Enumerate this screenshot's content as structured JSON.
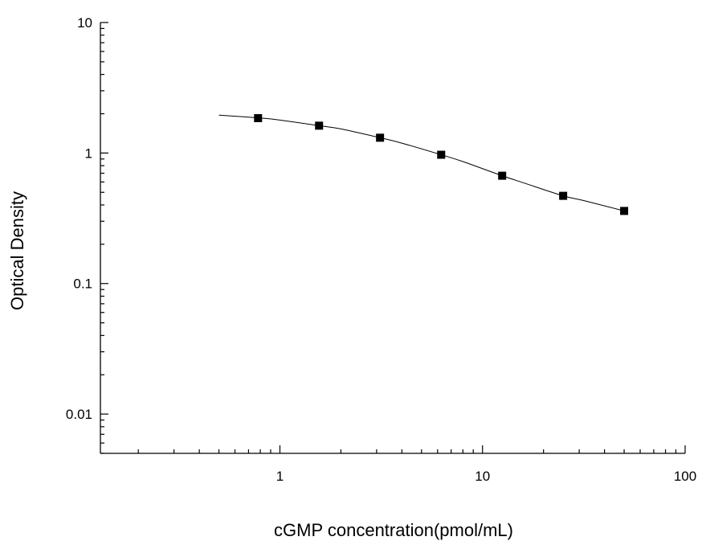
{
  "chart_data": {
    "type": "scatter",
    "title": "",
    "xlabel": "cGMP concentration(pmol/mL)",
    "ylabel": "Optical Density",
    "x_scale": "log",
    "y_scale": "log",
    "xlim": [
      0.13,
      100
    ],
    "ylim": [
      0.005,
      10
    ],
    "x_ticks": [
      1,
      10,
      100
    ],
    "x_tick_labels": [
      "1",
      "10",
      "100"
    ],
    "y_ticks": [
      0.01,
      0.1,
      1,
      10
    ],
    "y_tick_labels": [
      "0.01",
      "0.1",
      "1",
      "10"
    ],
    "grid": false,
    "legend": "none",
    "series": [
      {
        "marker": "square",
        "color": "#000000",
        "x": [
          0.78,
          1.56,
          3.12,
          6.25,
          12.5,
          25,
          50
        ],
        "y": [
          1.85,
          1.62,
          1.31,
          0.97,
          0.67,
          0.47,
          0.36
        ]
      }
    ],
    "fit_curve": {
      "type": "line",
      "color": "#000000",
      "x": [
        0.5,
        0.78,
        1.0,
        1.56,
        2.0,
        3.12,
        4.0,
        6.25,
        8.0,
        12.5,
        16.0,
        25,
        32.0,
        50
      ],
      "y": [
        1.95,
        1.86,
        1.79,
        1.62,
        1.53,
        1.31,
        1.19,
        0.97,
        0.86,
        0.67,
        0.59,
        0.47,
        0.43,
        0.36
      ]
    }
  }
}
